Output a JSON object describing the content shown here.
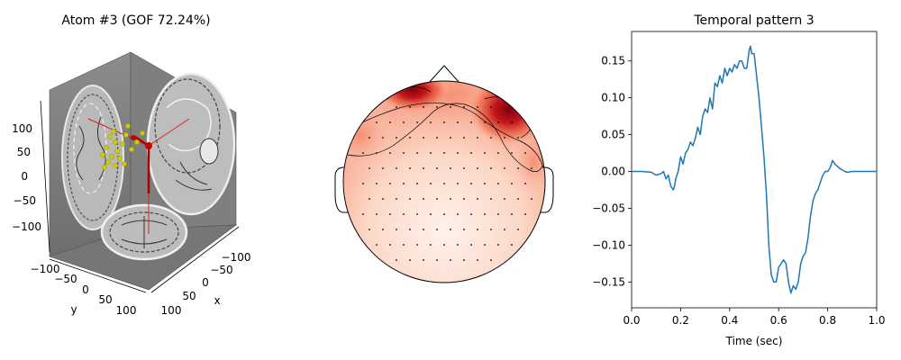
{
  "figure_title_left": "Atom #3 (GOF 72.24%)",
  "chart_data": [
    {
      "type": "scatter",
      "panel": "3d-dipole",
      "title": "Atom #3 (GOF 72.24%)",
      "xlabel": "x",
      "ylabel": "y",
      "x_ticks": [
        "100",
        "50",
        "0",
        "−100",
        "−50"
      ],
      "y_ticks": [
        "−100",
        "−50",
        "0",
        "50",
        "100"
      ],
      "z_ticks": [
        "100",
        "50",
        "0",
        "−50",
        "−100"
      ],
      "colors": {
        "pane": "#7a7a7a",
        "dipoles": "#cccc00",
        "selected": "#cc0000"
      }
    },
    {
      "type": "heatmap",
      "panel": "topomap",
      "title": "",
      "colormap": [
        "#ffffff",
        "#fcd5c4",
        "#f99b7c",
        "#e6372f",
        "#8a0712"
      ],
      "hotspots": [
        "left-frontal",
        "right-frontal"
      ]
    },
    {
      "type": "line",
      "title": "Temporal pattern 3",
      "xlabel": "Time (sec)",
      "ylabel": "",
      "xlim": [
        0.0,
        1.0
      ],
      "ylim": [
        -0.185,
        0.19
      ],
      "x_ticks": [
        "0.0",
        "0.2",
        "0.4",
        "0.6",
        "0.8",
        "1.0"
      ],
      "y_ticks": [
        "−0.15",
        "−0.10",
        "−0.05",
        "0.00",
        "0.05",
        "0.10",
        "0.15"
      ],
      "color": "#1f77b4",
      "series": [
        {
          "x": [
            0.0,
            0.04,
            0.08,
            0.1,
            0.12,
            0.13,
            0.14,
            0.15,
            0.16,
            0.17,
            0.175,
            0.18,
            0.19,
            0.2,
            0.21,
            0.22,
            0.23,
            0.24,
            0.25,
            0.26,
            0.27,
            0.28,
            0.29,
            0.3,
            0.31,
            0.32,
            0.33,
            0.34,
            0.35,
            0.36,
            0.37,
            0.38,
            0.39,
            0.4,
            0.41,
            0.42,
            0.43,
            0.44,
            0.45,
            0.46,
            0.47,
            0.48,
            0.485,
            0.49,
            0.5,
            0.51,
            0.52,
            0.53,
            0.54,
            0.55,
            0.56,
            0.57,
            0.58,
            0.59,
            0.6,
            0.61,
            0.62,
            0.63,
            0.64,
            0.65,
            0.66,
            0.67,
            0.68,
            0.69,
            0.7,
            0.71,
            0.72,
            0.73,
            0.74,
            0.75,
            0.76,
            0.77,
            0.78,
            0.79,
            0.8,
            0.81,
            0.82,
            0.83,
            0.84,
            0.85,
            0.86,
            0.87,
            0.88,
            0.9,
            0.95,
            1.0
          ],
          "y": [
            0.0,
            0.0,
            -0.001,
            -0.005,
            -0.003,
            0.0,
            -0.01,
            -0.005,
            -0.02,
            -0.025,
            -0.02,
            -0.01,
            0.0,
            0.02,
            0.01,
            0.025,
            0.03,
            0.04,
            0.035,
            0.045,
            0.06,
            0.05,
            0.075,
            0.085,
            0.08,
            0.1,
            0.085,
            0.12,
            0.115,
            0.13,
            0.12,
            0.14,
            0.13,
            0.14,
            0.135,
            0.145,
            0.14,
            0.15,
            0.15,
            0.14,
            0.14,
            0.165,
            0.17,
            0.16,
            0.16,
            0.13,
            0.1,
            0.06,
            0.02,
            -0.03,
            -0.1,
            -0.14,
            -0.15,
            -0.15,
            -0.13,
            -0.125,
            -0.12,
            -0.125,
            -0.15,
            -0.165,
            -0.155,
            -0.16,
            -0.15,
            -0.125,
            -0.115,
            -0.11,
            -0.09,
            -0.06,
            -0.04,
            -0.03,
            -0.025,
            -0.015,
            -0.005,
            0.0,
            0.0,
            0.005,
            0.015,
            0.01,
            0.007,
            0.004,
            0.002,
            0.0,
            -0.001,
            0.0,
            0.0,
            0.0
          ]
        }
      ]
    }
  ]
}
